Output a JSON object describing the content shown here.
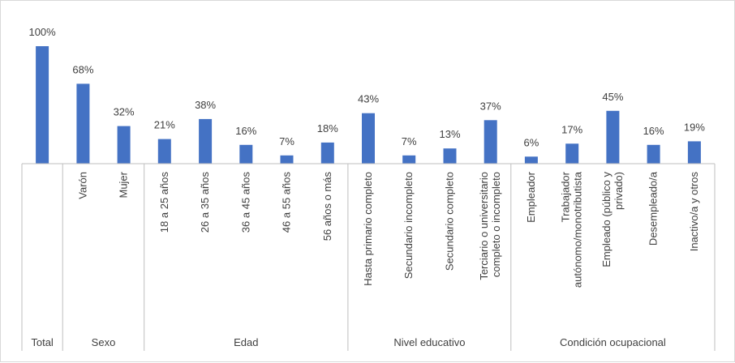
{
  "chart_data": {
    "type": "bar",
    "title": "",
    "xlabel": "",
    "ylabel": "",
    "ylim": [
      0,
      100
    ],
    "grid": false,
    "legend": "none",
    "bar_color": "#4472C4",
    "categories": [
      "Total",
      "Varón",
      "Mujer",
      "18 a 25 años",
      "26 a 35 años",
      "36 a 45 años",
      "46 a 55 años",
      "56 años o más",
      "Hasta primario completo",
      "Secundario incompleto",
      "Secundario completo",
      "Terciario o universitario completo o incompleto",
      "Empleador",
      "Trabajador autónomo/monotributista",
      "Empleado (público y privado)",
      "Desempleado/a",
      "Inactivo/a y otros"
    ],
    "category_label_lines": [
      [
        "Total"
      ],
      [
        "Varón"
      ],
      [
        "Mujer"
      ],
      [
        "18 a 25 años"
      ],
      [
        "26 a 35 años"
      ],
      [
        "36 a 45 años"
      ],
      [
        "46 a 55 años"
      ],
      [
        "56 años o más"
      ],
      [
        "Hasta primario completo"
      ],
      [
        "Secundario incompleto"
      ],
      [
        "Secundario completo"
      ],
      [
        "Terciario o universitario",
        "completo o incompleto"
      ],
      [
        "Empleador"
      ],
      [
        "Trabajador",
        "autónomo/monotributista"
      ],
      [
        "Empleado (público y",
        "privado)"
      ],
      [
        "Desempleado/a"
      ],
      [
        "Inactivo/a y otros"
      ]
    ],
    "values": [
      100,
      68,
      32,
      21,
      38,
      16,
      7,
      18,
      43,
      7,
      13,
      37,
      6,
      17,
      45,
      16,
      19
    ],
    "data_labels": [
      "100%",
      "68%",
      "32%",
      "21%",
      "38%",
      "16%",
      "7%",
      "18%",
      "43%",
      "7%",
      "13%",
      "37%",
      "6%",
      "17%",
      "45%",
      "16%",
      "19%"
    ],
    "groups": [
      {
        "name": "Total",
        "count": 1
      },
      {
        "name": "Sexo",
        "count": 2
      },
      {
        "name": "Edad",
        "count": 5
      },
      {
        "name": "Nivel educativo",
        "count": 4
      },
      {
        "name": "Condición ocupacional",
        "count": 5
      }
    ]
  }
}
